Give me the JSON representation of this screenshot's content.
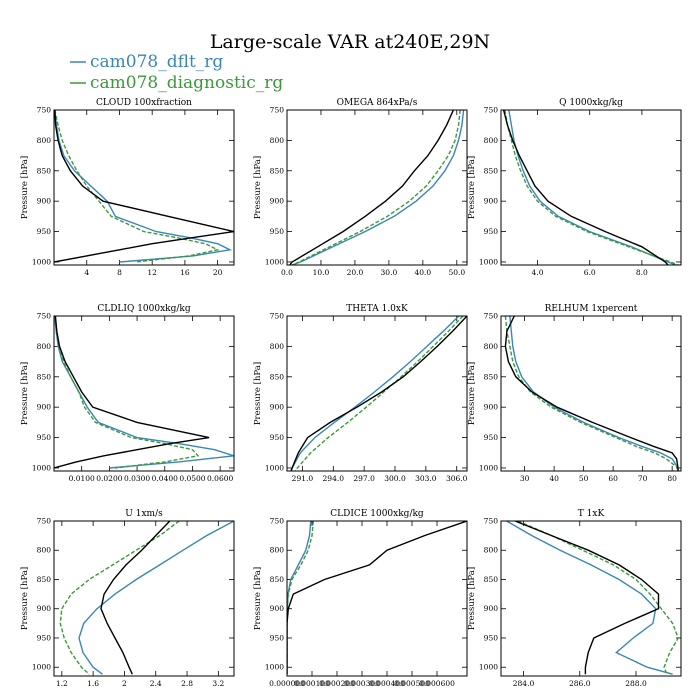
{
  "title": "Large-scale VAR at240E,29N",
  "colors": {
    "dflt": "#3a86b8",
    "diagnostic": "#3a9a3a",
    "obs": "#000000"
  },
  "legend": [
    {
      "label": "cam078_dflt_rg",
      "color": "#3a86b8"
    },
    {
      "label": "cam078_diagnostic_rg",
      "color": "#3a9a3a"
    }
  ],
  "ylabel": "Pressure [hPa]",
  "chart_data": [
    {
      "type": "line",
      "title": "CLOUD  100xfraction",
      "xlim": [
        0,
        22
      ],
      "ylim": [
        1005,
        750
      ],
      "xticks": [
        4,
        8,
        12,
        16,
        20
      ],
      "xtick_labels": [
        "4",
        "8",
        "12",
        "16",
        "20"
      ],
      "yticks": [
        750,
        800,
        850,
        900,
        950,
        1000
      ],
      "ytick_labels": [
        "750",
        "800",
        "850",
        "900",
        "950",
        "1000"
      ],
      "p": [
        750,
        775,
        800,
        825,
        850,
        875,
        900,
        925,
        950,
        960,
        970,
        980,
        990,
        1000
      ],
      "series": [
        {
          "key": "dflt",
          "x": [
            0.1,
            0.3,
            0.6,
            1.2,
            2.5,
            4.5,
            6.5,
            7.5,
            12.5,
            16.5,
            20.0,
            21.5,
            17.0,
            8.0
          ],
          "dash": ""
        },
        {
          "key": "diagnostic",
          "x": [
            0.1,
            0.5,
            1.0,
            1.8,
            2.8,
            4.0,
            5.5,
            7.0,
            11.0,
            15.0,
            18.5,
            20.0,
            16.5,
            10.0
          ],
          "dash": "4,2"
        },
        {
          "key": "obs",
          "x": [
            0.1,
            0.2,
            0.5,
            1.0,
            2.0,
            3.5,
            6.0,
            14.0,
            22.0,
            17.0,
            12.0,
            8.0,
            4.0,
            0.0
          ],
          "dash": ""
        }
      ]
    },
    {
      "type": "line",
      "title": "OMEGA  864xPa/s",
      "xlim": [
        0,
        53
      ],
      "ylim": [
        1005,
        750
      ],
      "xticks": [
        0,
        10,
        20,
        30,
        40,
        50
      ],
      "xtick_labels": [
        "0.0",
        "10.0",
        "20.0",
        "30.0",
        "40.0",
        "50.0"
      ],
      "yticks": [
        750,
        800,
        850,
        900,
        950,
        1000
      ],
      "ytick_labels": [
        "750",
        "800",
        "850",
        "900",
        "950",
        "1000"
      ],
      "p": [
        750,
        775,
        800,
        825,
        850,
        875,
        900,
        925,
        950,
        975,
        1000,
        1005
      ],
      "series": [
        {
          "key": "dflt",
          "x": [
            52.0,
            51.5,
            50.5,
            49.0,
            46.5,
            43.0,
            38.0,
            31.5,
            23.0,
            13.5,
            4.0,
            1.5
          ],
          "dash": ""
        },
        {
          "key": "diagnostic",
          "x": [
            51.0,
            50.5,
            49.5,
            47.5,
            44.5,
            41.0,
            36.0,
            29.5,
            21.5,
            12.5,
            3.5,
            1.5
          ],
          "dash": "4,2"
        },
        {
          "key": "obs",
          "x": [
            49.0,
            47.0,
            44.5,
            41.5,
            37.5,
            34.0,
            29.0,
            23.0,
            16.5,
            9.0,
            1.5,
            0.8
          ],
          "dash": ""
        }
      ]
    },
    {
      "type": "line",
      "title": "Q  1000xkg/kg",
      "xlim": [
        2.6,
        9.5
      ],
      "ylim": [
        1005,
        750
      ],
      "xticks": [
        4,
        6,
        8
      ],
      "xtick_labels": [
        "4.0",
        "6.0",
        "8.0"
      ],
      "yticks": [
        750,
        800,
        850,
        900,
        950,
        1000
      ],
      "ytick_labels": [
        "750",
        "800",
        "850",
        "900",
        "950",
        "1000"
      ],
      "p": [
        750,
        775,
        800,
        825,
        850,
        875,
        900,
        925,
        950,
        975,
        1000,
        1005
      ],
      "series": [
        {
          "key": "dflt",
          "x": [
            2.9,
            3.0,
            3.1,
            3.25,
            3.45,
            3.7,
            4.1,
            4.8,
            6.0,
            7.6,
            9.0,
            9.3
          ],
          "dash": ""
        },
        {
          "key": "diagnostic",
          "x": [
            2.75,
            2.85,
            3.0,
            3.15,
            3.35,
            3.6,
            4.0,
            4.7,
            5.9,
            7.5,
            9.1,
            9.4
          ],
          "dash": "4,2"
        },
        {
          "key": "obs",
          "x": [
            2.7,
            2.85,
            3.05,
            3.3,
            3.6,
            3.9,
            4.4,
            5.3,
            6.6,
            8.0,
            8.9,
            9.0
          ],
          "dash": ""
        }
      ]
    },
    {
      "type": "line",
      "title": "CLDLIQ  1000xkg/kg",
      "xlim": [
        0,
        0.065
      ],
      "ylim": [
        1005,
        750
      ],
      "xticks": [
        0.01,
        0.02,
        0.03,
        0.04,
        0.05,
        0.06
      ],
      "xtick_labels": [
        "0.0100",
        "0.0200",
        "0.0300",
        "0.0400",
        "0.0500",
        "0.0600"
      ],
      "yticks": [
        750,
        800,
        850,
        900,
        950,
        1000
      ],
      "ytick_labels": [
        "750",
        "800",
        "850",
        "900",
        "950",
        "1000"
      ],
      "p": [
        750,
        775,
        800,
        825,
        850,
        875,
        900,
        925,
        950,
        960,
        970,
        980,
        990,
        1000
      ],
      "series": [
        {
          "key": "dflt",
          "x": [
            0.0003,
            0.0008,
            0.0015,
            0.003,
            0.006,
            0.009,
            0.012,
            0.016,
            0.03,
            0.045,
            0.058,
            0.065,
            0.045,
            0.02
          ],
          "dash": ""
        },
        {
          "key": "diagnostic",
          "x": [
            0.0003,
            0.0009,
            0.0018,
            0.0035,
            0.006,
            0.009,
            0.011,
            0.015,
            0.028,
            0.04,
            0.05,
            0.052,
            0.04,
            0.022
          ],
          "dash": "4,2"
        },
        {
          "key": "obs",
          "x": [
            0.0005,
            0.001,
            0.002,
            0.004,
            0.007,
            0.01,
            0.014,
            0.03,
            0.056,
            0.042,
            0.03,
            0.018,
            0.008,
            0.0
          ],
          "dash": ""
        }
      ]
    },
    {
      "type": "line",
      "title": "THETA  1.0xK",
      "xlim": [
        289.5,
        307
      ],
      "ylim": [
        1005,
        750
      ],
      "xticks": [
        291,
        294,
        297,
        300,
        303,
        306
      ],
      "xtick_labels": [
        "291.0",
        "294.0",
        "297.0",
        "300.0",
        "303.0",
        "306.0"
      ],
      "yticks": [
        750,
        800,
        850,
        900,
        950,
        1000
      ],
      "ytick_labels": [
        "750",
        "800",
        "850",
        "900",
        "950",
        "1000"
      ],
      "p": [
        750,
        775,
        800,
        825,
        850,
        875,
        900,
        925,
        950,
        975,
        1000,
        1005
      ],
      "series": [
        {
          "key": "dflt",
          "x": [
            306.2,
            304.7,
            303.1,
            301.5,
            299.8,
            298.0,
            296.1,
            294.1,
            292.2,
            290.8,
            290.0,
            289.9
          ],
          "dash": ""
        },
        {
          "key": "diagnostic",
          "x": [
            306.6,
            305.2,
            303.7,
            302.2,
            300.6,
            298.9,
            297.2,
            295.4,
            293.5,
            291.8,
            290.5,
            290.3
          ],
          "dash": "4,2"
        },
        {
          "key": "obs",
          "x": [
            307.0,
            305.6,
            304.1,
            302.5,
            300.8,
            298.7,
            296.3,
            293.7,
            291.5,
            290.6,
            290.0,
            289.9
          ],
          "dash": ""
        }
      ]
    },
    {
      "type": "line",
      "title": "RELHUM  1xpercent",
      "xlim": [
        22,
        83
      ],
      "ylim": [
        1005,
        750
      ],
      "xticks": [
        30,
        40,
        50,
        60,
        70,
        80
      ],
      "xtick_labels": [
        "30",
        "40",
        "50",
        "60",
        "70",
        "80"
      ],
      "yticks": [
        750,
        800,
        850,
        900,
        950,
        1000
      ],
      "ytick_labels": [
        "750",
        "800",
        "850",
        "900",
        "950",
        "1000"
      ],
      "p": [
        750,
        775,
        800,
        825,
        850,
        875,
        900,
        925,
        950,
        965,
        975,
        985,
        1000,
        1005
      ],
      "series": [
        {
          "key": "dflt",
          "x": [
            25.0,
            25.5,
            26.0,
            27.0,
            29.0,
            33.0,
            40.0,
            50.0,
            62.0,
            70.0,
            76.0,
            80.0,
            82.0,
            82.0
          ],
          "dash": ""
        },
        {
          "key": "diagnostic",
          "x": [
            23.5,
            24.0,
            25.0,
            26.0,
            28.0,
            32.0,
            39.0,
            49.0,
            61.0,
            68.0,
            74.0,
            78.0,
            82.0,
            82.0
          ],
          "dash": "4,2"
        },
        {
          "key": "obs",
          "x": [
            26.5,
            24.0,
            23.5,
            24.5,
            27.0,
            32.5,
            41.0,
            53.0,
            66.0,
            74.0,
            80.0,
            81.5,
            82.0,
            82.0
          ],
          "dash": ""
        }
      ]
    },
    {
      "type": "line",
      "title": "U  1xm/s",
      "xlim": [
        1.1,
        3.4
      ],
      "ylim": [
        1015,
        750
      ],
      "xticks": [
        1.2,
        1.6,
        2.0,
        2.4,
        2.8,
        3.2
      ],
      "xtick_labels": [
        "1.2",
        "1.6",
        "2",
        "2.4",
        "2.8",
        "3.2"
      ],
      "yticks": [
        750,
        800,
        850,
        900,
        950,
        1000
      ],
      "ytick_labels": [
        "750",
        "800",
        "850",
        "900",
        "950",
        "1000"
      ],
      "p": [
        750,
        775,
        800,
        825,
        850,
        875,
        900,
        925,
        950,
        975,
        1000,
        1012
      ],
      "series": [
        {
          "key": "dflt",
          "x": [
            3.4,
            3.05,
            2.75,
            2.45,
            2.15,
            1.88,
            1.65,
            1.48,
            1.42,
            1.47,
            1.6,
            1.72
          ],
          "dash": ""
        },
        {
          "key": "diagnostic",
          "x": [
            2.7,
            2.45,
            2.15,
            1.85,
            1.55,
            1.32,
            1.2,
            1.18,
            1.23,
            1.32,
            1.45,
            1.55
          ],
          "dash": "4,2"
        },
        {
          "key": "obs",
          "x": [
            2.58,
            2.4,
            2.22,
            2.02,
            1.86,
            1.74,
            1.7,
            1.78,
            1.88,
            1.98,
            2.06,
            2.1
          ],
          "dash": ""
        }
      ]
    },
    {
      "type": "line",
      "title": "CLDICE  1000xkg/kg",
      "xlim": [
        0,
        0.00072
      ],
      "ylim": [
        1015,
        750
      ],
      "xticks": [
        0,
        0.0001,
        0.0002,
        0.0003,
        0.0004,
        0.0005,
        0.0006
      ],
      "xtick_labels": [
        "0.000000",
        "0.000100",
        "0.000200",
        "0.000300",
        "0.000400",
        "0.000500",
        "0.000600"
      ],
      "yticks": [
        750,
        800,
        850,
        900,
        950,
        1000
      ],
      "ytick_labels": [
        "750",
        "800",
        "850",
        "900",
        "950",
        "1000"
      ],
      "p": [
        750,
        775,
        800,
        825,
        850,
        875,
        900,
        925,
        950,
        975,
        1000,
        1012
      ],
      "series": [
        {
          "key": "dflt",
          "x": [
            9.5e-05,
            9e-05,
            7.5e-05,
            4.5e-05,
            1.5e-05,
            4e-06,
            1e-06,
            0.0,
            0.0,
            0.0,
            0.0,
            0.0
          ],
          "dash": ""
        },
        {
          "key": "diagnostic",
          "x": [
            0.000105,
            0.0001,
            8.5e-05,
            5.5e-05,
            2e-05,
            5e-06,
            1e-06,
            0.0,
            0.0,
            0.0,
            0.0,
            0.0
          ],
          "dash": "4,2"
        },
        {
          "key": "obs",
          "x": [
            0.00072,
            0.00055,
            0.0004,
            0.00033,
            0.00015,
            2.5e-05,
            5e-06,
            0.0,
            0.0,
            0.0,
            0.0,
            0.0
          ],
          "dash": ""
        }
      ]
    },
    {
      "type": "line",
      "title": "T  1xK",
      "xlim": [
        283.2,
        289.6
      ],
      "ylim": [
        1015,
        750
      ],
      "xticks": [
        284,
        286,
        288
      ],
      "xtick_labels": [
        "284.0",
        "286.0",
        "288.0"
      ],
      "yticks": [
        750,
        800,
        850,
        900,
        950,
        1000
      ],
      "ytick_labels": [
        "750",
        "800",
        "850",
        "900",
        "950",
        "1000"
      ],
      "p": [
        750,
        775,
        800,
        825,
        850,
        875,
        900,
        925,
        950,
        975,
        1000,
        1012
      ],
      "series": [
        {
          "key": "dflt",
          "x": [
            283.4,
            284.3,
            285.3,
            286.4,
            287.4,
            288.2,
            288.7,
            288.6,
            287.9,
            287.3,
            288.4,
            289.3
          ],
          "dash": ""
        },
        {
          "key": "diagnostic",
          "x": [
            283.8,
            285.0,
            286.1,
            287.2,
            288.0,
            288.5,
            288.9,
            289.3,
            289.5,
            289.2,
            289.0,
            289.1
          ],
          "dash": "4,2"
        },
        {
          "key": "obs",
          "x": [
            283.7,
            285.0,
            286.3,
            287.4,
            288.2,
            288.8,
            288.8,
            287.6,
            286.5,
            286.3,
            286.2,
            286.2
          ],
          "dash": ""
        }
      ]
    }
  ]
}
